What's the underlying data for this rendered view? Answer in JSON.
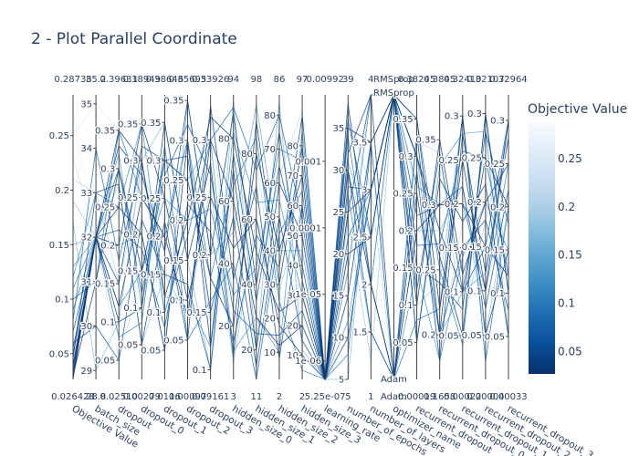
{
  "chart_data": {
    "type": "parallel_coordinates",
    "title": "2 - Plot Parallel Coordinate",
    "colorbar": {
      "title": "Objective Value",
      "colorscale": "Blues (reversed)",
      "range": [
        0.0264,
        0.2873
      ],
      "tick_values": [
        0.05,
        0.1,
        0.15,
        0.2,
        0.25
      ],
      "tick_labels": [
        "0.05",
        "0.1",
        "0.15",
        "0.2",
        "0.25"
      ],
      "color_low": "#08306b",
      "color_high": "#f7fbff"
    },
    "dimensions": [
      {
        "label": "Objective Value",
        "min_label": "0.026428",
        "max_label": "0.28738",
        "range": [
          0.026428,
          0.28738
        ],
        "ticks": [
          0.05,
          0.1,
          0.15,
          0.2,
          0.25
        ],
        "tick_labels": [
          "0.05",
          "0.1",
          "0.15",
          "0.2",
          "0.25"
        ]
      },
      {
        "label": "batch_size",
        "min_label": "28.8",
        "max_label": "35.2",
        "range": [
          28.8,
          35.2
        ],
        "ticks": [
          29,
          30,
          31,
          32,
          33,
          34,
          35
        ],
        "tick_labels": [
          "29",
          "30",
          "31",
          "32",
          "33",
          "34",
          "35"
        ]
      },
      {
        "label": "dropout",
        "min_label": "0.02510",
        "max_label": "0.39631",
        "range": [
          0.0251,
          0.39631
        ],
        "ticks": [
          0.05,
          0.1,
          0.15,
          0.2,
          0.25,
          0.3,
          0.35
        ],
        "tick_labels": [
          "0.05",
          "0.1",
          "0.15",
          "0.2",
          "0.25",
          "0.3",
          "0.35"
        ]
      },
      {
        "label": "dropout_0",
        "min_label": "0.00279",
        "max_label": "0.38949",
        "range": [
          0.00279,
          0.38949
        ],
        "ticks": [
          0.05,
          0.1,
          0.15,
          0.2,
          0.25,
          0.3,
          0.35
        ],
        "tick_labels": [
          "0.05",
          "0.1",
          "0.15",
          "0.2",
          "0.25",
          "0.3",
          "0.35"
        ]
      },
      {
        "label": "dropout_1",
        "min_label": "0.0116",
        "max_label": "0.38646",
        "range": [
          0.0116,
          0.38646
        ],
        "ticks": [
          0.05,
          0.1,
          0.15,
          0.2,
          0.25,
          0.3,
          0.35
        ],
        "tick_labels": [
          "0.05",
          "0.1",
          "0.15",
          "0.2",
          "0.25",
          "0.3",
          "0.35"
        ]
      },
      {
        "label": "dropout_2",
        "min_label": "0.00097",
        "max_label": "0.35695",
        "range": [
          0.00097,
          0.35695
        ],
        "ticks": [
          0.05,
          0.1,
          0.15,
          0.2,
          0.25,
          0.3,
          0.35
        ],
        "tick_labels": [
          "0.05",
          "0.1",
          "0.15",
          "0.2",
          "0.25",
          "0.3",
          "0.35"
        ]
      },
      {
        "label": "dropout_3",
        "min_label": "0.09161",
        "max_label": "0.33926",
        "range": [
          0.09161,
          0.33926
        ],
        "ticks": [
          0.1,
          0.15,
          0.2,
          0.25,
          0.3
        ],
        "tick_labels": [
          "0.1",
          "0.15",
          "0.2",
          "0.25",
          "0.3"
        ]
      },
      {
        "label": "hidden_size_0",
        "min_label": "3",
        "max_label": "94",
        "range": [
          3,
          94
        ],
        "ticks": [
          20,
          40,
          60,
          80
        ],
        "tick_labels": [
          "20",
          "40",
          "60",
          "80"
        ]
      },
      {
        "label": "hidden_size_1",
        "min_label": "11",
        "max_label": "98",
        "range": [
          11,
          98
        ],
        "ticks": [
          20,
          40,
          60,
          80
        ],
        "tick_labels": [
          "20",
          "40",
          "60",
          "80"
        ]
      },
      {
        "label": "hidden_size_2",
        "min_label": "2",
        "max_label": "86",
        "range": [
          2,
          86
        ],
        "ticks": [
          10,
          20,
          30,
          40,
          50,
          60,
          70,
          80
        ],
        "tick_labels": [
          "10",
          "20",
          "30",
          "40",
          "50",
          "60",
          "70",
          "80"
        ]
      },
      {
        "label": "hidden_size_3",
        "min_label": "2",
        "max_label": "97",
        "range": [
          2,
          97
        ],
        "ticks": [
          10,
          20,
          30,
          40,
          50,
          60,
          70,
          80
        ],
        "tick_labels": [
          "10",
          "20",
          "30",
          "40",
          "50",
          "60",
          "70",
          "80"
        ]
      },
      {
        "label": "learning_rate",
        "min_label": "5.25e-07",
        "max_label": "0.00992",
        "log_range": [
          -6.28,
          -2.0
        ],
        "ticks": [
          -6,
          -5,
          -4,
          -3
        ],
        "tick_labels": [
          "1e-06",
          "1e-05",
          "0.0001",
          "0.001"
        ]
      },
      {
        "label": "number_of_epochs",
        "min_label": "5",
        "max_label": "39",
        "range": [
          5,
          39
        ],
        "ticks": [
          5,
          10,
          15,
          20,
          25,
          30,
          35
        ],
        "tick_labels": [
          "5",
          "10",
          "15",
          "20",
          "25",
          "30",
          "35"
        ]
      },
      {
        "label": "number_of_layers",
        "min_label": "1",
        "max_label": "4",
        "range": [
          1,
          4
        ],
        "ticks": [
          1.5,
          2,
          2.5,
          3,
          3.5
        ],
        "tick_labels": [
          "1.5",
          "2",
          "2.5",
          "3",
          "3.5"
        ]
      },
      {
        "label": "optimizer_name",
        "categorical": true,
        "categories": [
          "Adam",
          "RMSprop"
        ],
        "min_label": "Adam",
        "max_label": "RMSprop",
        "ticks": [],
        "tick_labels": []
      },
      {
        "label": "recurrent_dropout",
        "min_label": "0.00019",
        "max_label": "0.38245",
        "range": [
          0.00019,
          0.38245
        ],
        "ticks": [
          0.05,
          0.1,
          0.15,
          0.2,
          0.25,
          0.3,
          0.35
        ],
        "tick_labels": [
          "0.05",
          "0.1",
          "0.15",
          "0.2",
          "0.25",
          "0.3",
          "0.35"
        ]
      },
      {
        "label": "recurrent_dropout_0",
        "min_label": "0.1658",
        "max_label": "0.3845",
        "range": [
          0.1658,
          0.3845
        ],
        "ticks": [
          0.2,
          0.25,
          0.3,
          0.35
        ],
        "tick_labels": [
          "0.2",
          "0.25",
          "0.3",
          "0.35"
        ]
      },
      {
        "label": "recurrent_dropout_1",
        "min_label": "0.00022",
        "max_label": "0.32410",
        "range": [
          0.00022,
          0.3241
        ],
        "ticks": [
          0.05,
          0.1,
          0.15,
          0.2,
          0.25,
          0.3
        ],
        "tick_labels": [
          "0.05",
          "0.1",
          "0.15",
          "0.2",
          "0.25",
          "0.3"
        ]
      },
      {
        "label": "recurrent_dropout_2",
        "min_label": "0.00004",
        "max_label": "0.32107",
        "range": [
          4e-05,
          0.32107
        ],
        "ticks": [
          0.05,
          0.1,
          0.15,
          0.2,
          0.25,
          0.3
        ],
        "tick_labels": [
          "0.05",
          "0.1",
          "0.15",
          "0.2",
          "0.25",
          "0.3"
        ]
      },
      {
        "label": "recurrent_dropout_3",
        "min_label": "0.00033",
        "max_label": "0.32964",
        "range": [
          0.00033,
          0.32964
        ],
        "ticks": [
          0.05,
          0.1,
          0.15,
          0.2,
          0.25,
          0.3
        ],
        "tick_labels": [
          "0.05",
          "0.1",
          "0.15",
          "0.2",
          "0.25",
          "0.3"
        ]
      }
    ],
    "trials": [
      [
        0.0264,
        32,
        0.12,
        0.25,
        0.2,
        0.08,
        0.3,
        60,
        30,
        12,
        20,
        -3.1,
        25,
        3,
        "RMSprop",
        0.3,
        0.28,
        0.1,
        0.25,
        0.2
      ],
      [
        0.028,
        32,
        0.35,
        0.3,
        0.12,
        0.2,
        0.32,
        80,
        50,
        22,
        30,
        -3.4,
        30,
        2,
        "Adam",
        0.2,
        0.3,
        0.2,
        0.15,
        0.12
      ],
      [
        0.03,
        31,
        0.3,
        0.15,
        0.3,
        0.25,
        0.18,
        20,
        80,
        40,
        70,
        -2.6,
        35,
        3.5,
        "RMSprop",
        0.35,
        0.22,
        0.25,
        0.1,
        0.3
      ],
      [
        0.032,
        32,
        0.2,
        0.35,
        0.25,
        0.1,
        0.25,
        45,
        60,
        18,
        10,
        -3.0,
        20,
        2.5,
        "RMSprop",
        0.1,
        0.35,
        0.12,
        0.2,
        0.25
      ],
      [
        0.035,
        32,
        0.25,
        0.2,
        0.05,
        0.3,
        0.12,
        70,
        20,
        60,
        50,
        -3.8,
        32,
        4,
        "Adam",
        0.25,
        0.2,
        0.3,
        0.05,
        0.15
      ],
      [
        0.038,
        32,
        0.1,
        0.1,
        0.35,
        0.15,
        0.28,
        10,
        90,
        30,
        80,
        -2.8,
        28,
        3,
        "RMSprop",
        0.3,
        0.26,
        0.05,
        0.3,
        0.1
      ],
      [
        0.04,
        32,
        0.33,
        0.28,
        0.18,
        0.35,
        0.2,
        88,
        40,
        75,
        35,
        -3.3,
        15,
        3.5,
        "RMSprop",
        0.05,
        0.32,
        0.18,
        0.22,
        0.05
      ],
      [
        0.045,
        33,
        0.28,
        0.05,
        0.22,
        0.05,
        0.33,
        35,
        70,
        8,
        60,
        -2.3,
        38,
        2,
        "Adam",
        0.28,
        0.18,
        0.28,
        0.12,
        0.28
      ],
      [
        0.05,
        32,
        0.15,
        0.32,
        0.3,
        0.28,
        0.15,
        55,
        15,
        50,
        15,
        -4.5,
        10,
        3,
        "RMSprop",
        0.15,
        0.24,
        0.08,
        0.28,
        0.18
      ],
      [
        0.055,
        32,
        0.22,
        0.18,
        0.08,
        0.22,
        0.22,
        15,
        55,
        35,
        90,
        -3.6,
        25,
        4,
        "RMSprop",
        0.22,
        0.3,
        0.22,
        0.08,
        0.22
      ],
      [
        0.06,
        30,
        0.05,
        0.22,
        0.15,
        0.12,
        0.1,
        75,
        35,
        65,
        40,
        -5.5,
        30,
        1.5,
        "Adam",
        0.33,
        0.2,
        0.15,
        0.18,
        0.08
      ],
      [
        0.07,
        32,
        0.3,
        0.12,
        0.28,
        0.32,
        0.27,
        25,
        25,
        15,
        25,
        -2.9,
        36,
        2.5,
        "RMSprop",
        0.12,
        0.34,
        0.1,
        0.15,
        0.3
      ],
      [
        0.08,
        34,
        0.18,
        0.3,
        0.1,
        0.18,
        0.3,
        90,
        75,
        80,
        55,
        -3.2,
        22,
        3,
        "RMSprop",
        0.18,
        0.27,
        0.26,
        0.25,
        0.12
      ],
      [
        0.09,
        32,
        0.08,
        0.08,
        0.32,
        0.05,
        0.16,
        40,
        10,
        45,
        65,
        -4.2,
        8,
        3.5,
        "Adam",
        0.08,
        0.22,
        0.3,
        0.02,
        0.2
      ],
      [
        0.1,
        31,
        0.35,
        0.25,
        0.2,
        0.3,
        0.18,
        65,
        85,
        25,
        5,
        -2.4,
        34,
        2,
        "RMSprop",
        0.35,
        0.25,
        0.04,
        0.3,
        0.1
      ],
      [
        0.11,
        32,
        0.12,
        0.15,
        0.25,
        0.2,
        0.24,
        30,
        45,
        70,
        75,
        -3.5,
        18,
        4,
        "RMSprop",
        0.26,
        0.3,
        0.2,
        0.1,
        0.25
      ],
      [
        0.12,
        33,
        0.25,
        0.35,
        0.12,
        0.1,
        0.12,
        82,
        65,
        55,
        30,
        -5.0,
        27,
        1.5,
        "Adam",
        0.15,
        0.18,
        0.14,
        0.2,
        0.15
      ],
      [
        0.13,
        32,
        0.32,
        0.1,
        0.3,
        0.25,
        0.3,
        12,
        30,
        10,
        85,
        -3.0,
        12,
        3,
        "RMSprop",
        0.05,
        0.33,
        0.28,
        0.28,
        0.05
      ],
      [
        0.15,
        32,
        0.2,
        0.2,
        0.05,
        0.35,
        0.2,
        50,
        95,
        40,
        45,
        -2.7,
        31,
        2.5,
        "RMSprop",
        0.3,
        0.2,
        0.1,
        0.12,
        0.3
      ],
      [
        0.17,
        29,
        0.1,
        0.3,
        0.35,
        0.15,
        0.1,
        92,
        20,
        84,
        12,
        -4.8,
        5,
        3.5,
        "Adam",
        0.2,
        0.28,
        0.22,
        0.05,
        0.2
      ],
      [
        0.19,
        32,
        0.28,
        0.05,
        0.15,
        0.08,
        0.26,
        8,
        60,
        28,
        60,
        -3.7,
        24,
        1.2,
        "RMSprop",
        0.1,
        0.24,
        0.3,
        0.3,
        0.12
      ],
      [
        0.21,
        33,
        0.15,
        0.28,
        0.22,
        0.3,
        0.14,
        62,
        40,
        62,
        92,
        -2.2,
        37,
        3,
        "Adam",
        0.32,
        0.34,
        0.06,
        0.18,
        0.28
      ],
      [
        0.23,
        32,
        0.05,
        0.15,
        0.28,
        0.22,
        0.32,
        28,
        78,
        20,
        35,
        -5.8,
        15,
        2,
        "RMSprop",
        0.25,
        0.19,
        0.18,
        0.25,
        0.08
      ],
      [
        0.25,
        35,
        0.35,
        0.22,
        0.1,
        0.12,
        0.22,
        85,
        12,
        48,
        70,
        -3.2,
        21,
        4,
        "RMSprop",
        0.18,
        0.3,
        0.12,
        0.1,
        0.22
      ],
      [
        0.27,
        32,
        0.18,
        0.32,
        0.3,
        0.28,
        0.12,
        45,
        50,
        78,
        20,
        -2.5,
        29,
        2.5,
        "Adam",
        0.35,
        0.25,
        0.25,
        0.2,
        0.3
      ],
      [
        0.285,
        30,
        0.26,
        0.12,
        0.18,
        0.05,
        0.28,
        18,
        88,
        5,
        50,
        -4.0,
        33,
        3.5,
        "RMSprop",
        0.05,
        0.21,
        0.02,
        0.28,
        0.1
      ]
    ]
  }
}
